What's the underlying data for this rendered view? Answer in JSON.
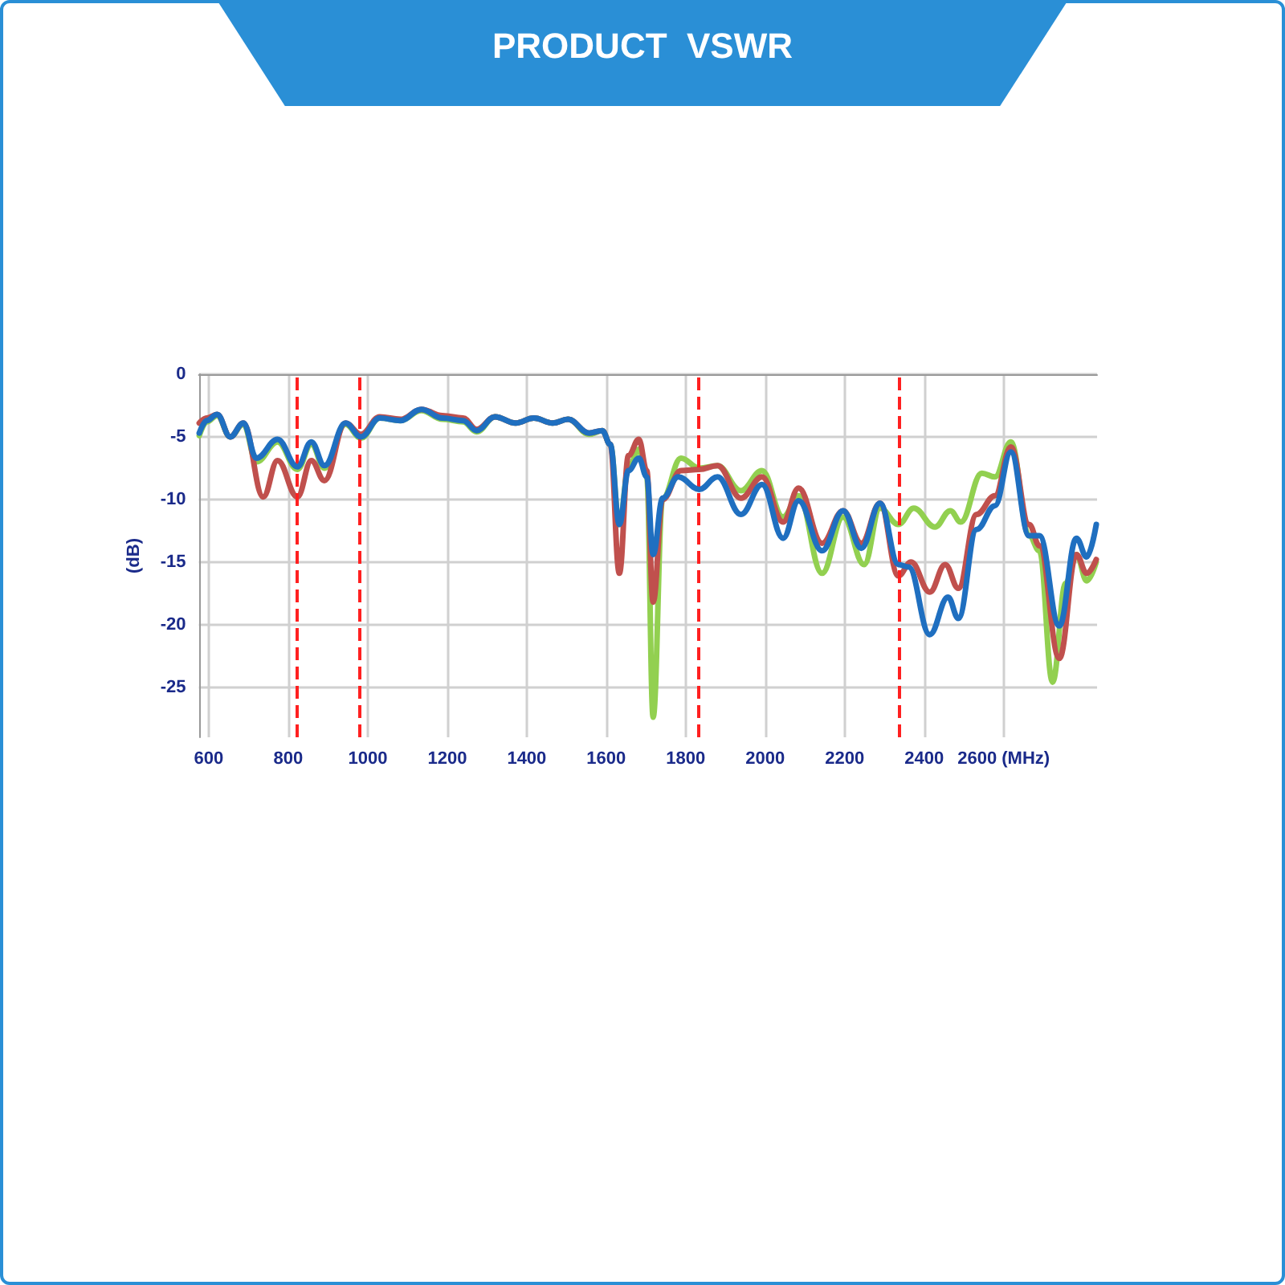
{
  "chart_data": {
    "type": "line",
    "title": "PRODUCT  VSWR",
    "ylabel": "(dB)",
    "xlim": [
      575,
      2835
    ],
    "xticks": [
      600,
      800,
      1000,
      1200,
      1400,
      1600,
      1800,
      2000,
      2200,
      2400,
      {
        "value": 2600,
        "label": "2600 (MHz)"
      }
    ],
    "ylim": [
      -29,
      0
    ],
    "yticks": [
      0,
      -5,
      -10,
      -15,
      -20,
      -25
    ],
    "grid": true,
    "marker": "none",
    "line_style": "solid",
    "ref_lines": [
      {
        "axis": "x",
        "value": 820,
        "color": "#ff2020",
        "line_style": "dashed"
      },
      {
        "axis": "x",
        "value": 980,
        "color": "#ff2020",
        "line_style": "dashed"
      },
      {
        "axis": "x",
        "value": 1830,
        "color": "#ff2020",
        "line_style": "dashed"
      },
      {
        "axis": "x",
        "value": 2335,
        "color": "#ff2020",
        "line_style": "dashed"
      }
    ],
    "series": [
      {
        "color": "#92d050",
        "x": [
          576,
          595,
          621,
          654,
          687,
          720,
          773,
          823,
          858,
          891,
          944,
          983,
          1030,
          1082,
          1135,
          1188,
          1240,
          1274,
          1320,
          1372,
          1418,
          1465,
          1504,
          1557,
          1590,
          1610,
          1633,
          1656,
          1682,
          1702,
          1718,
          1742,
          1788,
          1834,
          1880,
          1939,
          1992,
          2045,
          2084,
          2143,
          2196,
          2249,
          2289,
          2335,
          2374,
          2427,
          2466,
          2492,
          2545,
          2578,
          2618,
          2664,
          2690,
          2723,
          2756,
          2783,
          2809,
          2833
        ],
        "values": [
          -4.9,
          -3.8,
          -3.3,
          -5.0,
          -4.0,
          -7.0,
          -5.4,
          -7.6,
          -5.6,
          -7.5,
          -4.0,
          -5.1,
          -3.5,
          -3.7,
          -2.9,
          -3.6,
          -3.8,
          -4.6,
          -3.4,
          -3.9,
          -3.5,
          -3.9,
          -3.6,
          -4.8,
          -4.5,
          -5.6,
          -12.0,
          -7.5,
          -6.0,
          -8.2,
          -27.4,
          -9.9,
          -6.7,
          -7.5,
          -7.3,
          -9.3,
          -7.7,
          -11.4,
          -9.7,
          -15.9,
          -11.4,
          -15.2,
          -10.7,
          -12.0,
          -10.7,
          -12.2,
          -10.9,
          -11.8,
          -7.9,
          -8.2,
          -5.4,
          -12.9,
          -14.1,
          -24.6,
          -16.7,
          -14.4,
          -16.5,
          -15.0
        ]
      },
      {
        "color": "#c0504d",
        "x": [
          576,
          595,
          621,
          654,
          687,
          737,
          773,
          823,
          858,
          891,
          944,
          983,
          1030,
          1082,
          1135,
          1188,
          1240,
          1274,
          1320,
          1372,
          1418,
          1465,
          1504,
          1557,
          1590,
          1610,
          1633,
          1656,
          1682,
          1702,
          1718,
          1742,
          1788,
          1834,
          1880,
          1939,
          1992,
          2045,
          2084,
          2143,
          2196,
          2242,
          2289,
          2335,
          2367,
          2414,
          2453,
          2486,
          2532,
          2578,
          2618,
          2664,
          2690,
          2740,
          2783,
          2809,
          2833
        ],
        "values": [
          -3.9,
          -3.5,
          -3.2,
          -5.0,
          -3.9,
          -9.8,
          -6.9,
          -9.8,
          -6.9,
          -8.5,
          -3.9,
          -4.8,
          -3.4,
          -3.6,
          -2.8,
          -3.3,
          -3.5,
          -4.4,
          -3.4,
          -3.9,
          -3.5,
          -3.9,
          -3.6,
          -4.7,
          -4.5,
          -5.6,
          -15.9,
          -6.5,
          -5.2,
          -7.7,
          -18.2,
          -10.0,
          -7.7,
          -7.6,
          -7.3,
          -9.9,
          -8.2,
          -11.8,
          -9.1,
          -13.5,
          -10.9,
          -13.5,
          -10.3,
          -16.1,
          -15.0,
          -17.4,
          -15.2,
          -17.1,
          -11.2,
          -9.7,
          -5.8,
          -12.0,
          -13.7,
          -22.7,
          -14.4,
          -15.9,
          -14.8
        ]
      },
      {
        "color": "#1f6fc0",
        "x": [
          576,
          595,
          621,
          654,
          687,
          720,
          773,
          823,
          858,
          891,
          944,
          983,
          1030,
          1082,
          1135,
          1188,
          1240,
          1274,
          1320,
          1372,
          1418,
          1465,
          1504,
          1557,
          1590,
          1610,
          1633,
          1656,
          1682,
          1702,
          1718,
          1742,
          1781,
          1834,
          1880,
          1939,
          1992,
          2045,
          2084,
          2143,
          2196,
          2242,
          2289,
          2335,
          2361,
          2414,
          2460,
          2486,
          2532,
          2578,
          2618,
          2664,
          2690,
          2740,
          2783,
          2809,
          2833
        ],
        "values": [
          -4.7,
          -3.7,
          -3.2,
          -5.0,
          -3.9,
          -6.7,
          -5.2,
          -7.4,
          -5.4,
          -7.3,
          -3.9,
          -5.0,
          -3.5,
          -3.7,
          -2.8,
          -3.5,
          -3.7,
          -4.5,
          -3.4,
          -3.9,
          -3.5,
          -3.9,
          -3.6,
          -4.7,
          -4.5,
          -5.6,
          -12.0,
          -7.7,
          -6.7,
          -8.2,
          -14.4,
          -9.9,
          -8.2,
          -9.2,
          -8.2,
          -11.2,
          -8.8,
          -13.1,
          -10.1,
          -14.1,
          -10.9,
          -13.9,
          -10.3,
          -15.2,
          -15.4,
          -20.8,
          -17.8,
          -19.5,
          -12.4,
          -10.5,
          -6.2,
          -12.9,
          -12.9,
          -20.1,
          -13.1,
          -14.6,
          -12.0
        ]
      }
    ]
  }
}
